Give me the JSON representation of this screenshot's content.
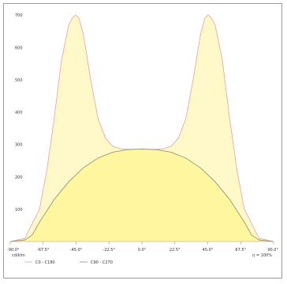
{
  "chart_data": {
    "type": "area",
    "title": "",
    "xlabel": "",
    "ylabel": "",
    "ylim": [
      0,
      720
    ],
    "xlim": [
      -90,
      90
    ],
    "y_ticks": [
      100,
      200,
      300,
      400,
      500,
      600,
      700
    ],
    "x_ticks": [
      -90,
      -67.5,
      -45,
      -22.5,
      0,
      22.5,
      45,
      67.5,
      90
    ],
    "x_tick_labels": [
      "-90.0°",
      "-67.5°",
      "-45.0°",
      "-22.5°",
      "0.0°",
      "22.5°",
      "45.0°",
      "67.5°",
      "90.0°"
    ],
    "grid": false,
    "bottom_left_label": "cd/klm",
    "bottom_right_label": "η = 100%",
    "series": [
      {
        "name": "C0 - C180",
        "color": "#e8a0a0",
        "fill": "#fff7c0",
        "x": [
          -90,
          -80,
          -70,
          -65,
          -60,
          -55,
          -50,
          -47,
          -45,
          -43,
          -40,
          -35,
          -30,
          -25,
          -20,
          -15,
          -10,
          -5,
          0,
          5,
          10,
          15,
          20,
          25,
          30,
          35,
          40,
          43,
          45,
          47,
          50,
          55,
          60,
          65,
          70,
          80,
          90
        ],
        "values": [
          0,
          10,
          100,
          220,
          380,
          560,
          670,
          695,
          700,
          690,
          640,
          500,
          380,
          320,
          295,
          287,
          285,
          285,
          285,
          285,
          285,
          287,
          295,
          320,
          380,
          500,
          640,
          690,
          700,
          695,
          670,
          560,
          380,
          220,
          100,
          10,
          0
        ]
      },
      {
        "name": "C90 - C270",
        "color": "#8a8a70",
        "fill": "#fff59a",
        "x": [
          -90,
          -80,
          -75,
          -70,
          -60,
          -50,
          -40,
          -30,
          -20,
          -10,
          0,
          10,
          20,
          30,
          40,
          50,
          60,
          70,
          75,
          80,
          90
        ],
        "values": [
          0,
          5,
          20,
          60,
          130,
          185,
          228,
          258,
          276,
          284,
          286,
          284,
          276,
          258,
          228,
          185,
          130,
          60,
          20,
          5,
          0
        ]
      }
    ],
    "legend_placement": "bottom-left"
  }
}
